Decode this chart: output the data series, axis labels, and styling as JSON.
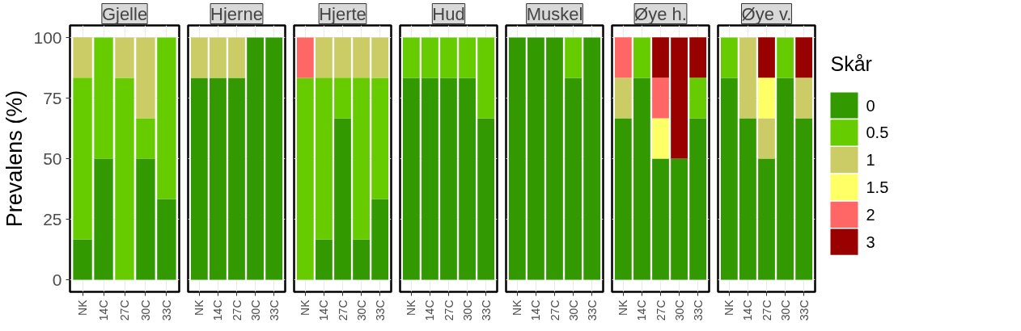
{
  "chart_data": [
    {
      "type": "bar",
      "stacked": true,
      "title": "Gjelle",
      "ylabel": "Prevalens (%)",
      "categories": [
        "NK",
        "14C",
        "27C",
        "30C",
        "33C"
      ],
      "ylim": [
        -5,
        105
      ],
      "yticks": [
        0,
        25,
        50,
        75,
        100
      ],
      "grid": true,
      "series": [
        {
          "color": "#339900",
          "values": [
            16.7,
            50,
            null,
            50,
            33.3
          ]
        },
        {
          "color": "#66cc00",
          "values": [
            66.7,
            50,
            83.3,
            16.7,
            66.7
          ]
        },
        {
          "color": "#cccc66",
          "values": [
            16.7,
            null,
            16.7,
            33.3,
            null
          ]
        },
        {
          "color": "#ffff66",
          "values": [
            null,
            null,
            null,
            null,
            null
          ]
        },
        {
          "color": "#ff6666",
          "values": [
            null,
            null,
            null,
            null,
            null
          ]
        },
        {
          "color": "#990000",
          "values": [
            null,
            null,
            null,
            null,
            null
          ]
        }
      ]
    },
    {
      "type": "bar",
      "stacked": true,
      "title": "Hjerne",
      "categories": [
        "NK",
        "14C",
        "27C",
        "30C",
        "33C"
      ],
      "ylim": [
        -5,
        105
      ],
      "yticks": [
        0,
        25,
        50,
        75,
        100
      ],
      "grid": true,
      "tick_labels": "x",
      "series": [
        {
          "color": "#339900",
          "values": [
            83.3,
            83.3,
            83.3,
            100,
            100
          ]
        },
        {
          "color": "#66cc00",
          "values": [
            null,
            null,
            null,
            null,
            null
          ]
        },
        {
          "color": "#cccc66",
          "values": [
            16.7,
            16.7,
            16.7,
            null,
            null
          ]
        },
        {
          "color": "#ffff66",
          "values": [
            null,
            null,
            null,
            null,
            null
          ]
        },
        {
          "color": "#ff6666",
          "values": [
            null,
            null,
            null,
            null,
            null
          ]
        },
        {
          "color": "#990000",
          "values": [
            null,
            null,
            null,
            null,
            null
          ]
        }
      ]
    },
    {
      "type": "bar",
      "stacked": true,
      "title": "Hjerte",
      "categories": [
        "NK",
        "14C",
        "27C",
        "30C",
        "33C"
      ],
      "ylim": [
        -5,
        105
      ],
      "yticks": [
        0,
        25,
        50,
        75,
        100
      ],
      "grid": true,
      "tick_labels": "x",
      "series": [
        {
          "color": "#339900",
          "values": [
            null,
            16.7,
            66.7,
            16.7,
            33.3
          ]
        },
        {
          "color": "#66cc00",
          "values": [
            83.3,
            66.7,
            16.7,
            66.7,
            50
          ]
        },
        {
          "color": "#cccc66",
          "values": [
            null,
            16.7,
            16.7,
            16.7,
            16.7
          ]
        },
        {
          "color": "#ffff66",
          "values": [
            null,
            null,
            null,
            null,
            null
          ]
        },
        {
          "color": "#ff6666",
          "values": [
            16.7,
            null,
            null,
            null,
            null
          ]
        },
        {
          "color": "#990000",
          "values": [
            null,
            null,
            null,
            null,
            null
          ]
        }
      ]
    },
    {
      "type": "bar",
      "stacked": true,
      "title": "Hud",
      "categories": [
        "NK",
        "14C",
        "27C",
        "30C",
        "33C"
      ],
      "ylim": [
        -5,
        105
      ],
      "yticks": [
        0,
        25,
        50,
        75,
        100
      ],
      "grid": true,
      "tick_labels": "x",
      "series": [
        {
          "color": "#339900",
          "values": [
            83.3,
            83.3,
            83.3,
            83.3,
            66.7
          ]
        },
        {
          "color": "#66cc00",
          "values": [
            16.7,
            16.7,
            16.7,
            16.7,
            33.3
          ]
        },
        {
          "color": "#cccc66",
          "values": [
            null,
            null,
            null,
            null,
            null
          ]
        },
        {
          "color": "#ffff66",
          "values": [
            null,
            null,
            null,
            null,
            null
          ]
        },
        {
          "color": "#ff6666",
          "values": [
            null,
            null,
            null,
            null,
            null
          ]
        },
        {
          "color": "#990000",
          "values": [
            null,
            null,
            null,
            null,
            null
          ]
        }
      ]
    },
    {
      "type": "bar",
      "stacked": true,
      "title": "Muskel",
      "categories": [
        "NK",
        "14C",
        "27C",
        "30C",
        "33C"
      ],
      "ylim": [
        -5,
        105
      ],
      "yticks": [
        0,
        25,
        50,
        75,
        100
      ],
      "grid": true,
      "tick_labels": "x",
      "series": [
        {
          "color": "#339900",
          "values": [
            100,
            100,
            100,
            83.3,
            100
          ]
        },
        {
          "color": "#66cc00",
          "values": [
            null,
            null,
            null,
            16.7,
            null
          ]
        },
        {
          "color": "#cccc66",
          "values": [
            null,
            null,
            null,
            null,
            null
          ]
        },
        {
          "color": "#ffff66",
          "values": [
            null,
            null,
            null,
            null,
            null
          ]
        },
        {
          "color": "#ff6666",
          "values": [
            null,
            null,
            null,
            null,
            null
          ]
        },
        {
          "color": "#990000",
          "values": [
            null,
            null,
            null,
            null,
            null
          ]
        }
      ]
    },
    {
      "type": "bar",
      "stacked": true,
      "title": "Øye h.",
      "categories": [
        "NK",
        "14C",
        "27C",
        "30C",
        "33C"
      ],
      "ylim": [
        -5,
        105
      ],
      "yticks": [
        0,
        25,
        50,
        75,
        100
      ],
      "grid": true,
      "tick_labels": "x",
      "series": [
        {
          "color": "#339900",
          "values": [
            66.7,
            83.3,
            50,
            50,
            66.7
          ]
        },
        {
          "color": "#66cc00",
          "values": [
            null,
            16.7,
            null,
            null,
            16.7
          ]
        },
        {
          "color": "#cccc66",
          "values": [
            16.7,
            null,
            null,
            null,
            null
          ]
        },
        {
          "color": "#ffff66",
          "values": [
            null,
            null,
            16.7,
            null,
            null
          ]
        },
        {
          "color": "#ff6666",
          "values": [
            16.7,
            null,
            16.7,
            null,
            null
          ]
        },
        {
          "color": "#990000",
          "values": [
            null,
            null,
            16.7,
            50,
            16.7
          ]
        }
      ]
    },
    {
      "type": "bar",
      "stacked": true,
      "title": "Øye v.",
      "categories": [
        "NK",
        "14C",
        "27C",
        "30C",
        "33C"
      ],
      "ylim": [
        -5,
        105
      ],
      "yticks": [
        0,
        25,
        50,
        75,
        100
      ],
      "grid": true,
      "tick_labels": "x",
      "legend": "right",
      "legend_title": "Skår",
      "series": [
        {
          "name": "0",
          "color": "#339900",
          "values": [
            83.3,
            66.7,
            50,
            83.3,
            66.7
          ]
        },
        {
          "name": "0.5",
          "color": "#66cc00",
          "values": [
            16.7,
            null,
            null,
            16.7,
            null
          ]
        },
        {
          "name": "1",
          "color": "#cccc66",
          "values": [
            null,
            33.3,
            16.7,
            null,
            16.7
          ]
        },
        {
          "name": "1.5",
          "color": "#ffff66",
          "values": [
            null,
            null,
            16.7,
            null,
            null
          ]
        },
        {
          "name": "2",
          "color": "#ff6666",
          "values": [
            null,
            null,
            null,
            null,
            null
          ]
        },
        {
          "name": "3",
          "color": "#990000",
          "values": [
            null,
            null,
            16.7,
            null,
            16.7
          ]
        }
      ]
    }
  ]
}
